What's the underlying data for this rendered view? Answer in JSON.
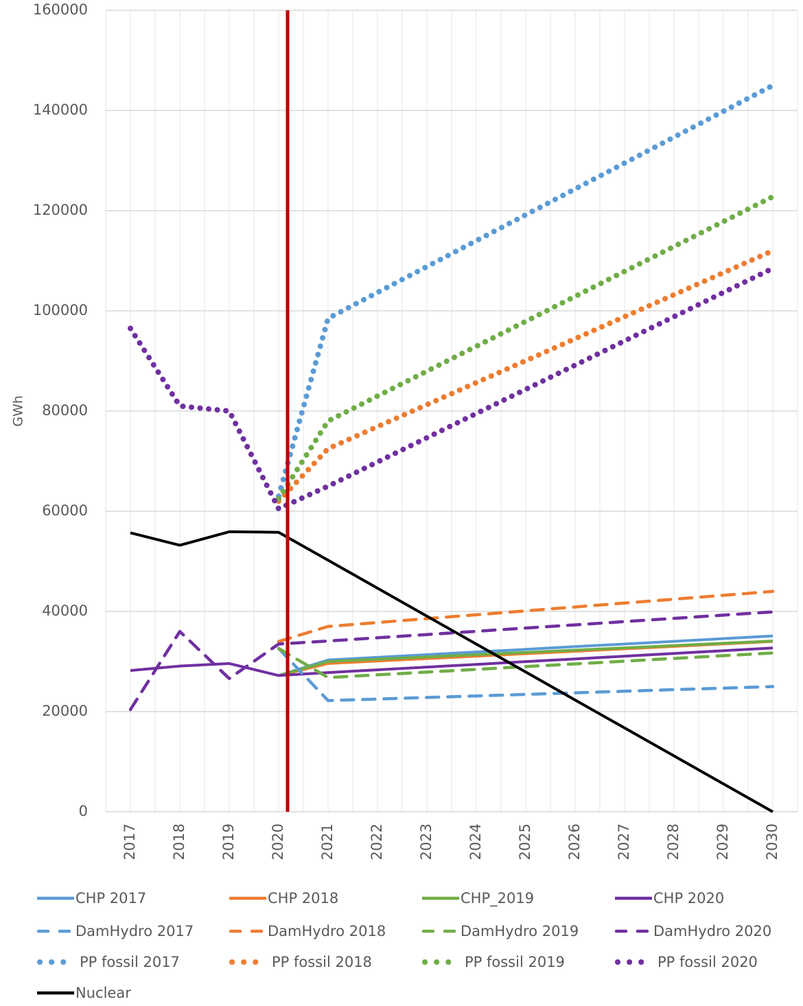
{
  "chart_data": {
    "type": "line",
    "title": "",
    "xlabel": "",
    "ylabel": "GWh",
    "ylim": [
      0,
      160000
    ],
    "yticks": [
      "0",
      "20000",
      "40000",
      "60000",
      "80000",
      "100000",
      "120000",
      "140000",
      "160000"
    ],
    "categories": [
      "2017",
      "2018",
      "2019",
      "2020",
      "2021",
      "2022",
      "2023",
      "2024",
      "2025",
      "2026",
      "2027",
      "2028",
      "2029",
      "2030"
    ],
    "grid": true,
    "legend_position": "bottom",
    "reference_line": {
      "x": "2020",
      "color": "#C00000"
    },
    "series": [
      {
        "name": "CHP 2017",
        "color": "#5B9BD5",
        "style": "solid",
        "values": [
          null,
          null,
          null,
          27200,
          30300,
          30830,
          31370,
          31900,
          32430,
          32970,
          33500,
          34030,
          34570,
          35100
        ]
      },
      {
        "name": "CHP 2018",
        "color": "#ED7D31",
        "style": "solid",
        "values": [
          null,
          null,
          null,
          27200,
          29600,
          30090,
          30580,
          31070,
          31560,
          32040,
          32530,
          33020,
          33510,
          34000
        ]
      },
      {
        "name": "CHP_2019",
        "color": "#70AD47",
        "style": "solid",
        "values": [
          null,
          null,
          null,
          27200,
          30000,
          30460,
          30910,
          31370,
          31820,
          32280,
          32730,
          33190,
          33640,
          34100
        ]
      },
      {
        "name": "CHP 2020",
        "color": "#7030A0",
        "style": "solid",
        "values": [
          28200,
          29100,
          29600,
          27200,
          27800,
          28340,
          28890,
          29430,
          29980,
          30520,
          31070,
          31610,
          32160,
          32700
        ]
      },
      {
        "name": "DamHydro 2017",
        "color": "#5B9BD5",
        "style": "dash",
        "values": [
          null,
          null,
          null,
          32600,
          22200,
          22510,
          22820,
          23130,
          23440,
          23760,
          24070,
          24380,
          24690,
          25000
        ]
      },
      {
        "name": "DamHydro 2018",
        "color": "#ED7D31",
        "style": "dash",
        "values": [
          null,
          null,
          null,
          34000,
          37000,
          37780,
          38560,
          39330,
          40110,
          40890,
          41670,
          42440,
          43220,
          44000
        ]
      },
      {
        "name": "DamHydro 2019",
        "color": "#70AD47",
        "style": "dash",
        "values": [
          null,
          null,
          null,
          32600,
          26800,
          27340,
          27890,
          28430,
          28980,
          29520,
          30070,
          30610,
          31160,
          31700
        ]
      },
      {
        "name": "DamHydro 2020",
        "color": "#7030A0",
        "style": "dash",
        "values": [
          20400,
          36000,
          26600,
          33500,
          34100,
          34740,
          35390,
          36030,
          36680,
          37320,
          37970,
          38610,
          39260,
          39900
        ]
      },
      {
        "name": "PP fossil 2017",
        "color": "#5B9BD5",
        "style": "dot",
        "values": [
          null,
          null,
          null,
          63000,
          98500,
          103670,
          108830,
          114000,
          119170,
          124330,
          129500,
          134670,
          139830,
          145000
        ]
      },
      {
        "name": "PP fossil 2018",
        "color": "#ED7D31",
        "style": "dot",
        "values": [
          null,
          null,
          null,
          62000,
          72500,
          76890,
          81280,
          85670,
          90060,
          94440,
          98830,
          103220,
          107610,
          112000
        ]
      },
      {
        "name": "PP fossil 2019",
        "color": "#70AD47",
        "style": "dot",
        "values": [
          null,
          null,
          null,
          62500,
          78000,
          82980,
          87960,
          92930,
          97910,
          102890,
          107870,
          112840,
          117820,
          122800
        ]
      },
      {
        "name": "PP fossil 2020",
        "color": "#7030A0",
        "style": "dot",
        "values": [
          96500,
          81000,
          80000,
          60500,
          65000,
          69830,
          74670,
          79500,
          84330,
          89170,
          94000,
          98830,
          103670,
          108500
        ]
      },
      {
        "name": "Nuclear",
        "color": "#000000",
        "style": "solid",
        "values": [
          55700,
          53200,
          55900,
          55800,
          50220,
          44640,
          39060,
          33480,
          27900,
          22320,
          16740,
          11160,
          5580,
          0
        ]
      }
    ]
  }
}
